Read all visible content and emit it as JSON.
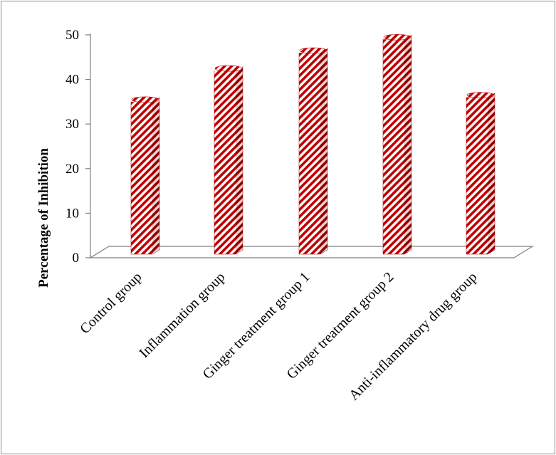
{
  "chart_data": {
    "type": "bar",
    "title": "",
    "xlabel": "",
    "ylabel": "Percentage of Inhibition",
    "categories": [
      "Control group",
      "Inflammation group",
      "Ginger treatment group 1",
      "Ginger treatment group 2",
      "Anti-inflammatory drug group"
    ],
    "values": [
      35,
      42,
      46,
      49,
      36
    ],
    "ylim": [
      0,
      50
    ],
    "yticks": [
      "0",
      "10",
      "20",
      "30",
      "40",
      "50"
    ],
    "grid": false,
    "legend": "none",
    "bar_style": "3d-cylinder-diagonal-stripes",
    "colors": {
      "stripe": "#c00000",
      "background_stripe": "#ffffff",
      "axis": "#808080"
    }
  }
}
